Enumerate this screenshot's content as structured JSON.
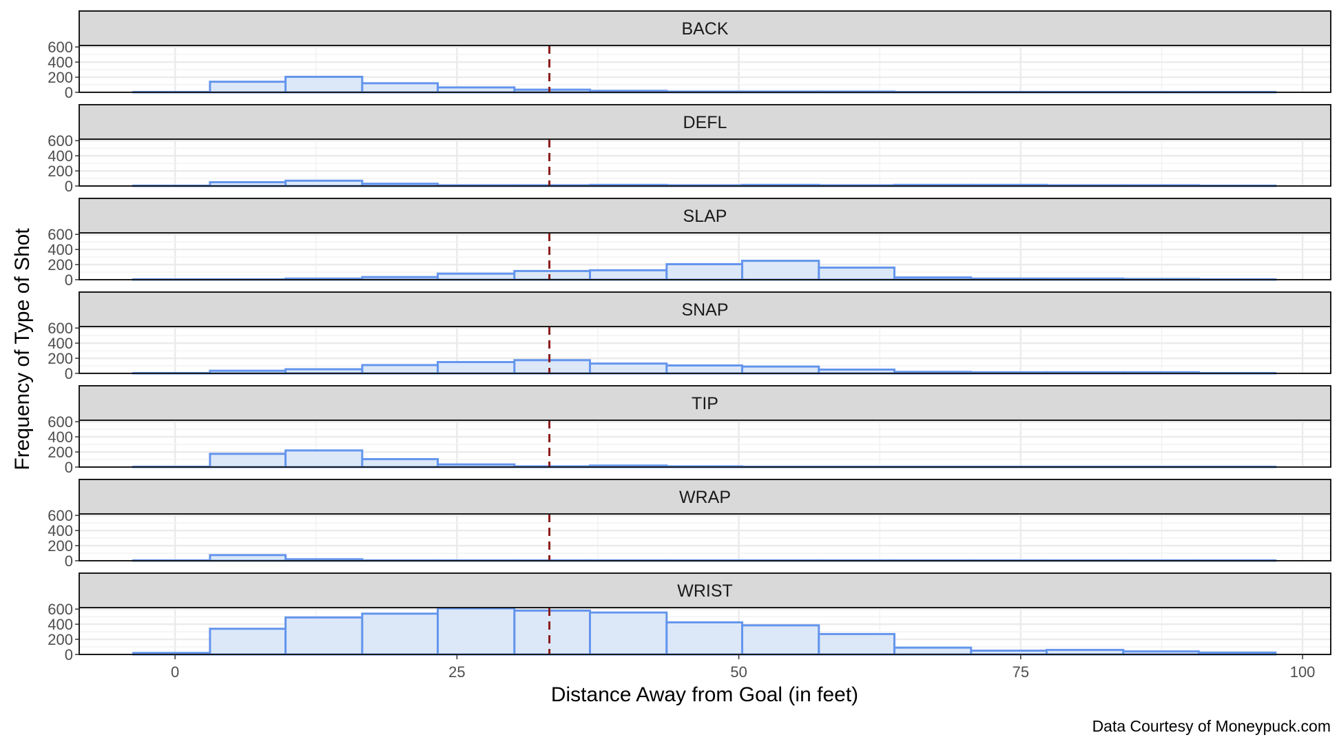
{
  "chart_data": {
    "type": "bar",
    "subtype": "faceted-histogram",
    "xlabel": "Distance Away from Goal (in feet)",
    "ylabel": "Frequency of Type of Shot",
    "caption": "Data Courtesy of Moneypuck.com",
    "xlim": [
      -8.5,
      102.5
    ],
    "ylim": [
      0,
      620
    ],
    "x_ticks": [
      0,
      25,
      50,
      75,
      100
    ],
    "y_ticks": [
      0,
      200,
      400,
      600
    ],
    "grid": true,
    "theme": "bw",
    "bin_edges": [
      -3.7,
      3.1,
      9.8,
      16.6,
      23.3,
      30.1,
      36.8,
      43.6,
      50.3,
      57.1,
      63.8,
      70.6,
      77.3,
      84.1,
      90.8,
      97.6
    ],
    "reference_line": {
      "x": 33.2,
      "style": "dashed",
      "color": "#8b1a1a"
    },
    "colors": {
      "bar_fill": "#dce8f8",
      "bar_stroke": "#6495ed",
      "strip_fill": "#d9d9d9",
      "grid": "#ebebeb"
    },
    "series": [
      {
        "name": "BACK",
        "values": [
          5,
          140,
          205,
          120,
          65,
          35,
          20,
          10,
          10,
          10,
          5,
          5,
          5,
          5,
          5
        ]
      },
      {
        "name": "DEFL",
        "values": [
          5,
          50,
          70,
          30,
          10,
          10,
          15,
          10,
          15,
          10,
          15,
          15,
          10,
          10,
          5
        ]
      },
      {
        "name": "SLAP",
        "values": [
          5,
          5,
          15,
          35,
          80,
          115,
          125,
          205,
          250,
          160,
          30,
          15,
          15,
          10,
          5
        ]
      },
      {
        "name": "SNAP",
        "values": [
          5,
          35,
          55,
          110,
          150,
          175,
          130,
          105,
          90,
          50,
          20,
          15,
          15,
          15,
          5
        ]
      },
      {
        "name": "TIP",
        "values": [
          5,
          175,
          220,
          105,
          35,
          10,
          20,
          10,
          5,
          5,
          5,
          5,
          5,
          5,
          5
        ]
      },
      {
        "name": "WRAP",
        "values": [
          5,
          75,
          20,
          5,
          5,
          5,
          5,
          5,
          5,
          5,
          5,
          5,
          5,
          5,
          5
        ]
      },
      {
        "name": "WRIST",
        "values": [
          20,
          340,
          490,
          540,
          610,
          580,
          555,
          425,
          385,
          270,
          90,
          50,
          60,
          40,
          25
        ]
      }
    ]
  }
}
